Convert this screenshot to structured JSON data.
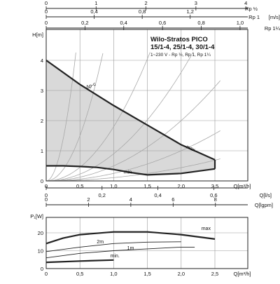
{
  "chart_data": [
    {
      "type": "line",
      "name": "pump-head-curve",
      "title": "Wilo-Stratos PICO",
      "subtitle_1": "15/1-4, 25/1-4, 30/1-4",
      "subtitle_2": "1~230 V - Rp ½, Rp 1, Rp 1¼",
      "xlabel": "Q[m³/h]",
      "ylabel": "H[m]",
      "xlim": [
        0,
        2.6
      ],
      "ylim": [
        0,
        4.3
      ],
      "x_ticks": [
        "0",
        "0,5",
        "1,0",
        "1,5",
        "2,0",
        "2,5"
      ],
      "x_tick_values": [
        0,
        0.5,
        1.0,
        1.5,
        2.0,
        2.5
      ],
      "y_ticks": [
        "0",
        "1",
        "2",
        "3",
        "4"
      ],
      "y_tick_values": [
        0,
        1,
        2,
        3,
        4
      ],
      "grid": true,
      "secondary_axes": {
        "top_1": {
          "label": "Rp ½",
          "unit": "",
          "ticks": [
            "0",
            "1",
            "2",
            "3",
            "4"
          ],
          "values": [
            0,
            1,
            2,
            3,
            4
          ],
          "max_q_at": 4.04
        },
        "top_2": {
          "label": "Rp 1",
          "unit": "[m/s]",
          "ticks": [
            "0",
            "0,4",
            "0,8",
            "1,2"
          ],
          "values": [
            0,
            0.4,
            0.8,
            1.2
          ],
          "max_q_at": 1.68
        },
        "top_3": {
          "label": "Rp 1¼",
          "unit": "",
          "ticks": [
            "0",
            "0,2",
            "0,4",
            "0,6",
            "0,8",
            "1,0"
          ],
          "values": [
            0,
            0.2,
            0.4,
            0.6,
            0.8,
            1.0
          ],
          "max_q_at": 1.04
        },
        "middle_1": {
          "label": "Q[l/s]",
          "ticks": [
            "0",
            "0,2",
            "0,4",
            "0,6"
          ],
          "values": [
            0,
            0.2,
            0.4,
            0.6
          ]
        },
        "middle_2": {
          "label": "Q[lgpm]",
          "ticks": [
            "0",
            "2",
            "4",
            "6",
            "8"
          ],
          "values": [
            0,
            2,
            4,
            6,
            8
          ]
        }
      },
      "series": [
        {
          "name": "Δp-c",
          "x": [
            0,
            0.5,
            1.0,
            1.5,
            2.0,
            2.5
          ],
          "y": [
            4.0,
            3.2,
            2.5,
            1.85,
            1.2,
            0.7
          ]
        },
        {
          "name": "max",
          "x": [
            0,
            0.5,
            1.0,
            1.5,
            2.0,
            2.5
          ],
          "y": [
            4.0,
            3.2,
            2.5,
            1.85,
            1.2,
            0.7
          ]
        },
        {
          "name": "min.",
          "x": [
            0,
            0.25,
            0.5,
            0.75,
            1.0,
            1.25,
            1.5,
            2.0,
            2.5
          ],
          "y": [
            0.5,
            0.5,
            0.48,
            0.45,
            0.38,
            0.28,
            0.2,
            0.25,
            0.4
          ]
        }
      ],
      "system_curves": [
        {
          "k": 22
        },
        {
          "k": 6
        },
        {
          "k": 1.8
        },
        {
          "k": 0.9
        },
        {
          "k": 0.5
        },
        {
          "k": 0.25
        },
        {
          "k": 0.11
        }
      ]
    },
    {
      "type": "line",
      "name": "power-curve",
      "xlabel": "Q[m³/h]",
      "ylabel": "P₁[W]",
      "xlim": [
        0,
        2.6
      ],
      "ylim": [
        0,
        27
      ],
      "x_ticks": [
        "0",
        "0,5",
        "1,0",
        "1,5",
        "2,0",
        "2,5"
      ],
      "x_tick_values": [
        0,
        0.5,
        1.0,
        1.5,
        2.0,
        2.5
      ],
      "y_ticks": [
        "0",
        "10",
        "20"
      ],
      "y_tick_values": [
        0,
        10,
        20
      ],
      "grid": true,
      "series": [
        {
          "name": "max",
          "x": [
            0,
            0.25,
            0.5,
            1.0,
            1.5,
            2.0,
            2.5
          ],
          "y": [
            14,
            17,
            19,
            20.5,
            20.5,
            19,
            16.5
          ]
        },
        {
          "name": "2m",
          "x": [
            0,
            0.5,
            1.0,
            1.5,
            2.0
          ],
          "y": [
            9.5,
            12,
            14,
            14.8,
            15
          ]
        },
        {
          "name": "1m",
          "x": [
            0,
            0.5,
            1.0,
            1.5,
            2.0,
            2.2
          ],
          "y": [
            6,
            8.5,
            10,
            11,
            12,
            12
          ]
        },
        {
          "name": "min.",
          "x": [
            0,
            0.5,
            1.0
          ],
          "y": [
            3.5,
            4.2,
            4.8
          ]
        }
      ]
    }
  ]
}
